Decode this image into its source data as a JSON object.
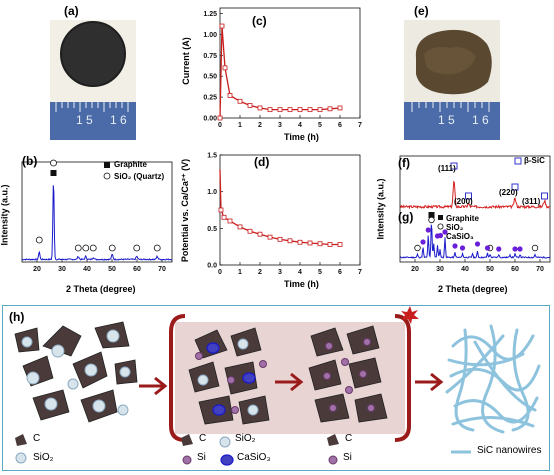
{
  "panels": {
    "a": {
      "label": "(a)",
      "ruler_numbers": [
        "1",
        "5",
        "1",
        "6"
      ]
    },
    "b": {
      "label": "(b)",
      "ylabel": "Intensity (a.u.)",
      "xlabel": "2 Theta (degree)",
      "xticks": [
        "10",
        "20",
        "30",
        "40",
        "50",
        "60",
        "70"
      ],
      "legend": [
        "Graphite",
        "SiO₂ (Quartz)"
      ]
    },
    "c": {
      "label": "(c)",
      "ylabel": "Current (A)",
      "xlabel": "Time (h)",
      "xticks": [
        "0",
        "1",
        "2",
        "3",
        "4",
        "5",
        "6",
        "7"
      ],
      "yticks": [
        "0.00",
        "0.25",
        "0.50",
        "0.75",
        "1.00",
        "1.25"
      ]
    },
    "d": {
      "label": "(d)",
      "ylabel": "Potential vs. Ca/Ca²⁺ (V)",
      "xlabel": "Time (h)",
      "xticks": [
        "0",
        "1",
        "2",
        "3",
        "4",
        "5",
        "6",
        "7"
      ],
      "yticks": [
        "0.0",
        "0.5",
        "1.0",
        "1.5"
      ]
    },
    "e": {
      "label": "(e)",
      "ruler_numbers": [
        "1",
        "5",
        "1",
        "6"
      ]
    },
    "f": {
      "label": "(f)",
      "legend": "β-SiC",
      "peaks": [
        "(111)",
        "(200)",
        "(220)",
        "(311)"
      ]
    },
    "g": {
      "label": "(g)",
      "ylabel": "Intensity (a.u.)",
      "xlabel": "2 Theta (degree)",
      "xticks": [
        "20",
        "30",
        "40",
        "50",
        "60",
        "70"
      ],
      "legend": [
        "Graphite",
        "SiO₂",
        "CaSiO₃"
      ]
    },
    "h": {
      "label": "(h)",
      "legend1": [
        "C",
        "SiO₂"
      ],
      "legend2": [
        "C",
        "SiO₂",
        "Si",
        "CaSiO₃"
      ],
      "legend3": [
        "C",
        "Si"
      ],
      "legend4": "SiC nanowires"
    }
  },
  "colors": {
    "xrd_blue": "#1a1acc",
    "electro_red": "#c81e1e",
    "sic_red": "#d42020",
    "casio3_purple": "#6a1fd8",
    "schematic_bg": "#ffffff",
    "schematic_border": "#5aa9c4",
    "reactor_fill": "#e9d4d4",
    "reactor_wall": "#9b1b1b",
    "nanowire": "#8ec3de",
    "carbon_fill": "#4a3a3a"
  },
  "chart_data": [
    {
      "panel": "b",
      "type": "line",
      "series": [
        {
          "name": "",
          "note": ""
        }
      ],
      "x_range": [
        10,
        70
      ],
      "peaks_graphite_2theta": [
        26.6
      ],
      "peaks_sio2_2theta": [
        20.9,
        26.6,
        36.5,
        39.5,
        42.5,
        50.1,
        59.9,
        68.1
      ]
    },
    {
      "panel": "c",
      "type": "line",
      "x": [
        0,
        0.1,
        0.25,
        0.5,
        1,
        1.5,
        2,
        2.5,
        3,
        3.5,
        4,
        4.5,
        5,
        5.5,
        6
      ],
      "y": [
        0.0,
        1.1,
        0.6,
        0.27,
        0.2,
        0.15,
        0.12,
        0.1,
        0.1,
        0.1,
        0.1,
        0.1,
        0.1,
        0.11,
        0.12
      ],
      "xlim": [
        0,
        7
      ],
      "ylim": [
        0,
        1.25
      ]
    },
    {
      "panel": "d",
      "type": "line",
      "x": [
        0,
        0.05,
        0.2,
        0.5,
        1,
        1.5,
        2,
        2.5,
        3,
        3.5,
        4,
        4.5,
        5,
        5.5,
        6
      ],
      "y": [
        1.3,
        0.75,
        0.65,
        0.6,
        0.52,
        0.46,
        0.42,
        0.38,
        0.35,
        0.33,
        0.31,
        0.3,
        0.29,
        0.28,
        0.28
      ],
      "xlim": [
        0,
        7
      ],
      "ylim": [
        0,
        1.5
      ]
    },
    {
      "panel": "f",
      "type": "line",
      "x_range": [
        15,
        75
      ],
      "peaks_2theta": [
        35.6,
        41.4,
        60.0,
        71.8
      ],
      "peak_labels": [
        "(111)",
        "(200)",
        "(220)",
        "(311)"
      ]
    },
    {
      "panel": "g",
      "type": "line",
      "x_range": [
        15,
        75
      ],
      "peaks_graphite_2theta": [
        26.6
      ],
      "peaks_sio2_2theta": [
        21,
        26.6,
        50,
        68
      ],
      "peaks_casio3_2theta": [
        23.2,
        25.3,
        27.5,
        29,
        30,
        32,
        36,
        39,
        43,
        45,
        49,
        53.5,
        58,
        60,
        62
      ]
    }
  ]
}
